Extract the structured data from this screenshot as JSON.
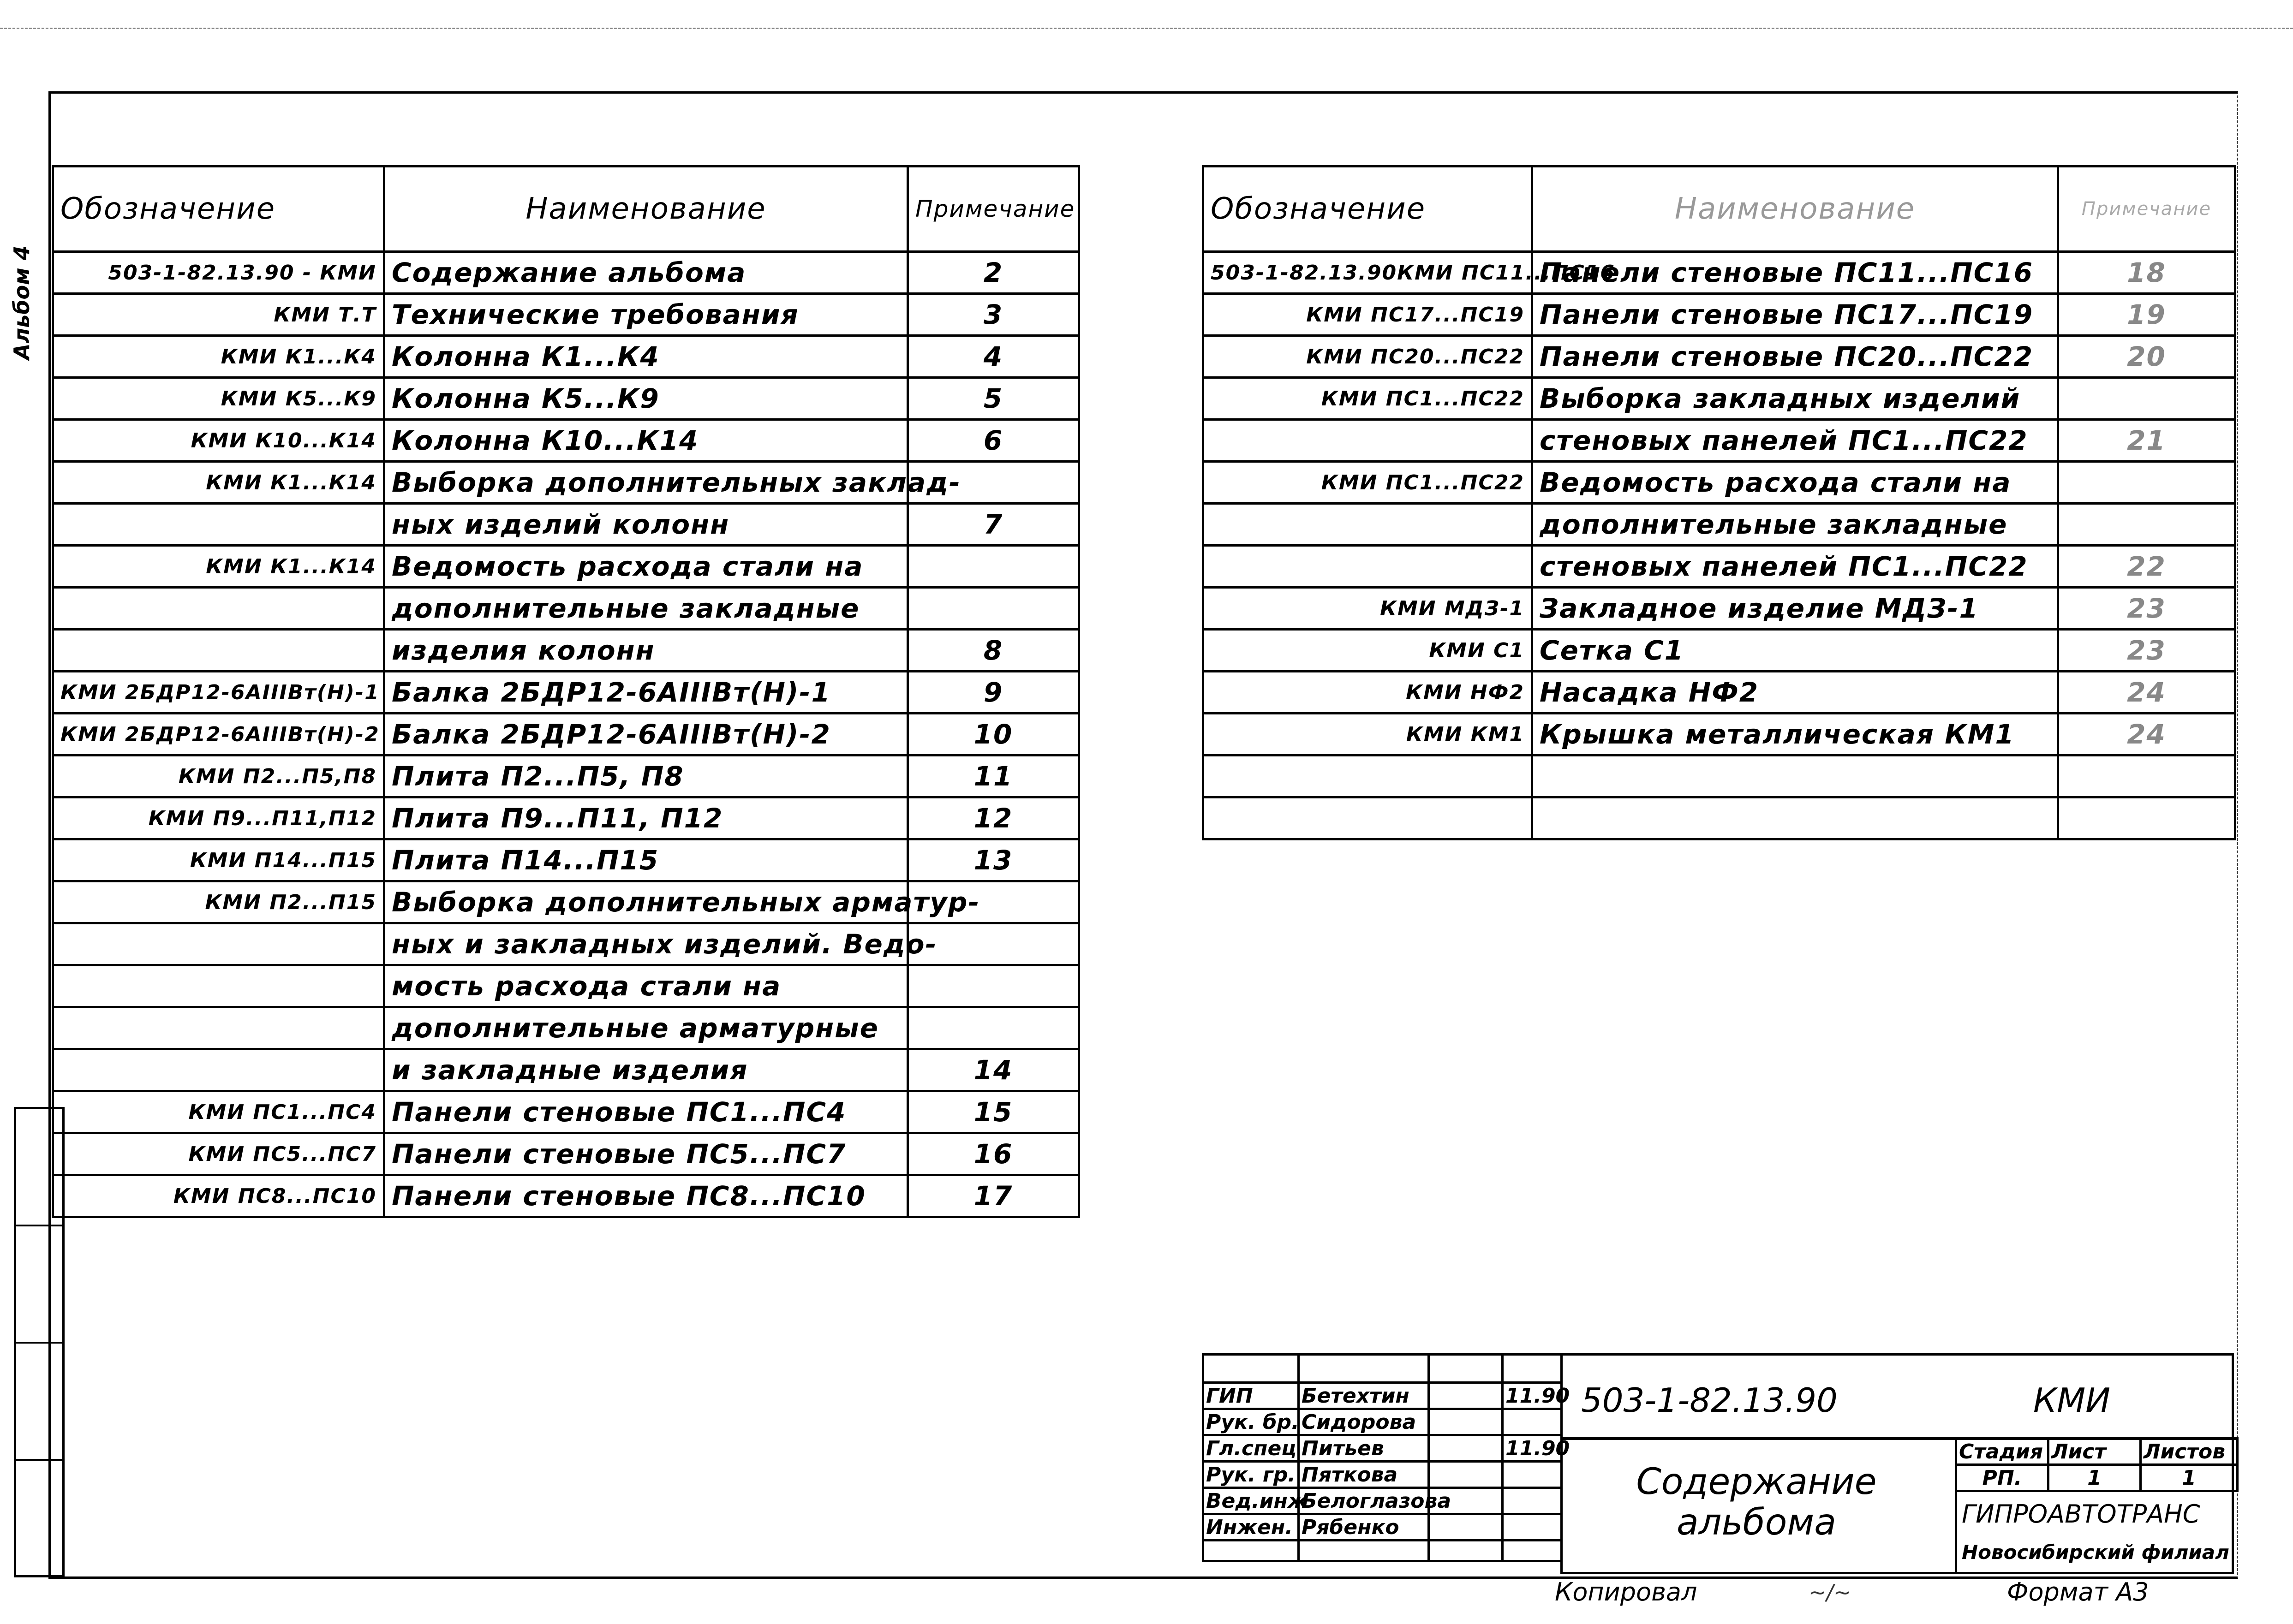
{
  "margin": {
    "album_label": "Альбом 4"
  },
  "left_table": {
    "headers": {
      "designation": "Обозначение",
      "name": "Наименование",
      "note": "Примечание"
    },
    "rows": [
      {
        "designation": "503-1-82.13.90 - КМИ",
        "name": "Содержание альбома",
        "note": "2"
      },
      {
        "designation": "КМИ Т.Т",
        "name": "Технические требования",
        "note": "3"
      },
      {
        "designation": "КМИ К1...К4",
        "name": "Колонна К1...К4",
        "note": "4"
      },
      {
        "designation": "КМИ К5...К9",
        "name": "Колонна К5...К9",
        "note": "5"
      },
      {
        "designation": "КМИ К10...К14",
        "name": "Колонна К10...К14",
        "note": "6"
      },
      {
        "designation": "КМИ К1...К14",
        "name": "Выборка дополнительных заклад-",
        "note": ""
      },
      {
        "designation": "",
        "name": "ных изделий колонн",
        "note": "7"
      },
      {
        "designation": "КМИ К1...К14",
        "name": "Ведомость расхода стали на",
        "note": ""
      },
      {
        "designation": "",
        "name": "дополнительные закладные",
        "note": ""
      },
      {
        "designation": "",
        "name": "изделия колонн",
        "note": "8"
      },
      {
        "designation": "КМИ 2БДР12-6АIIIВт(Н)-1",
        "name": "Балка 2БДР12-6АIIIВт(Н)-1",
        "note": "9"
      },
      {
        "designation": "КМИ 2БДР12-6АIIIВт(Н)-2",
        "name": "Балка 2БДР12-6АIIIВт(Н)-2",
        "note": "10"
      },
      {
        "designation": "КМИ П2...П5,П8",
        "name": "Плита П2...П5, П8",
        "note": "11"
      },
      {
        "designation": "КМИ П9...П11,П12",
        "name": "Плита П9...П11, П12",
        "note": "12"
      },
      {
        "designation": "КМИ П14...П15",
        "name": "Плита П14...П15",
        "note": "13"
      },
      {
        "designation": "КМИ П2...П15",
        "name": "Выборка дополнительных арматур-",
        "note": ""
      },
      {
        "designation": "",
        "name": "ных и закладных изделий. Ведо-",
        "note": ""
      },
      {
        "designation": "",
        "name": "мость расхода стали на",
        "note": ""
      },
      {
        "designation": "",
        "name": "дополнительные арматурные",
        "note": ""
      },
      {
        "designation": "",
        "name": "и закладные изделия",
        "note": "14"
      },
      {
        "designation": "КМИ ПС1...ПС4",
        "name": "Панели стеновые ПС1...ПС4",
        "note": "15"
      },
      {
        "designation": "КМИ ПС5...ПС7",
        "name": "Панели стеновые ПС5...ПС7",
        "note": "16"
      },
      {
        "designation": "КМИ ПС8...ПС10",
        "name": "Панели стеновые ПС8...ПС10",
        "note": "17"
      }
    ]
  },
  "right_table": {
    "headers": {
      "designation": "Обозначение",
      "name": "Наименование",
      "note": "Примечание"
    },
    "rows": [
      {
        "designation": "503-1-82.13.90КМИ ПС11...ПС16",
        "name": "Панели стеновые ПС11...ПС16",
        "note": "18"
      },
      {
        "designation": "КМИ ПС17...ПС19",
        "name": "Панели стеновые ПС17...ПС19",
        "note": "19"
      },
      {
        "designation": "КМИ ПС20...ПС22",
        "name": "Панели стеновые ПС20...ПС22",
        "note": "20"
      },
      {
        "designation": "КМИ ПС1...ПС22",
        "name": "Выборка закладных изделий",
        "note": ""
      },
      {
        "designation": "",
        "name": "стеновых панелей ПС1...ПС22",
        "note": "21"
      },
      {
        "designation": "КМИ ПС1...ПС22",
        "name": "Ведомость расхода стали на",
        "note": ""
      },
      {
        "designation": "",
        "name": "дополнительные закладные",
        "note": ""
      },
      {
        "designation": "",
        "name": "стеновых панелей ПС1...ПС22",
        "note": "22"
      },
      {
        "designation": "КМИ МДЗ-1",
        "name": "Закладное изделие МДЗ-1",
        "note": "23"
      },
      {
        "designation": "КМИ С1",
        "name": "Сетка С1",
        "note": "23"
      },
      {
        "designation": "КМИ НФ2",
        "name": "Насадка НФ2",
        "note": "24"
      },
      {
        "designation": "КМИ КМ1",
        "name": "Крышка металлическая КМ1",
        "note": "24"
      },
      {
        "designation": "",
        "name": "",
        "note": ""
      },
      {
        "designation": "",
        "name": "",
        "note": ""
      }
    ]
  },
  "title_block": {
    "signatures": [
      {
        "role": "ГИП",
        "name": "Бетехтин",
        "date": "11.90"
      },
      {
        "role": "Рук. бр.",
        "name": "Сидорова",
        "date": ""
      },
      {
        "role": "Гл.спец",
        "name": "Питьев",
        "date": "11.90"
      },
      {
        "role": "Рук. гр.",
        "name": "Пяткова",
        "date": ""
      },
      {
        "role": "Вед.инж",
        "name": "Белоглазова",
        "date": ""
      },
      {
        "role": "Инжен.",
        "name": "Рябенко",
        "date": ""
      }
    ],
    "code": "503-1-82.13.90",
    "mark": "КМИ",
    "title": "Содержание альбома",
    "stage_header": "Стадия",
    "sheet_header": "Лист",
    "sheets_header": "Листов",
    "stage": "РП.",
    "sheet": "1",
    "sheets": "1",
    "org": "ГИПРОАВТОТРАНС",
    "branch": "Новосибирский филиал"
  },
  "footer": {
    "copied_label": "Копировал",
    "format_label": "Формат А3"
  }
}
